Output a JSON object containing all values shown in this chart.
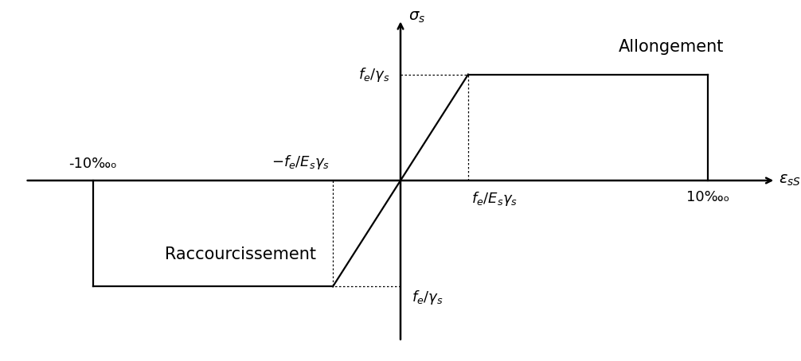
{
  "xlim": [
    -12.5,
    12.5
  ],
  "ylim": [
    -8,
    8
  ],
  "x_elastic_pos": 2.2,
  "x_max": 10.0,
  "x_elastic_neg": -2.2,
  "x_min": -10.0,
  "y_yield_pos": 5.0,
  "y_yield_neg": -5.0,
  "label_sigma": "$\\sigma_s$",
  "label_epsilon": "$\\varepsilon_{sS}$",
  "label_allongement": "Allongement",
  "label_raccourcissement": "Raccourcissement",
  "line_color": "black",
  "dotted_color": "black",
  "background_color": "white",
  "fontsize_labels": 13,
  "fontsize_axis_labels": 14,
  "fontsize_text": 15,
  "linewidth": 1.6,
  "arrow_lw": 1.8
}
